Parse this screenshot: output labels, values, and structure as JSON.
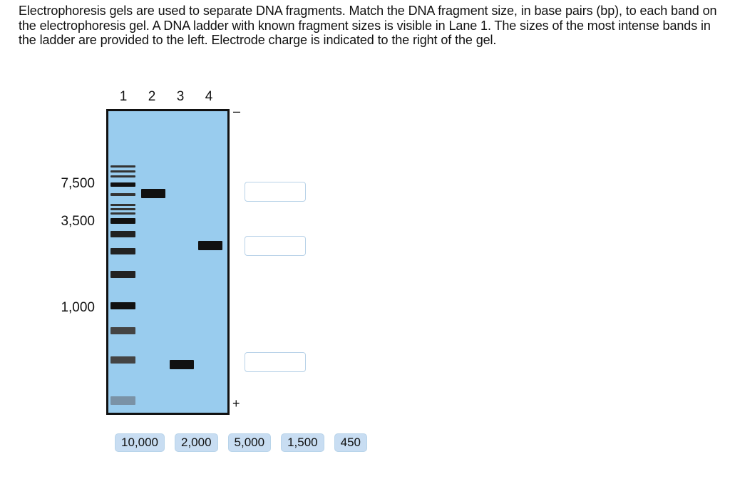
{
  "instructions": "Electrophoresis gels are used to separate DNA fragments. Match the DNA fragment size, in base pairs (bp), to each band on the electrophoresis gel. A DNA ladder with known fragment sizes is visible in Lane 1. The sizes of the most intense bands in the ladder are provided to the left. Electrode charge is indicated to the right of the gel.",
  "gel": {
    "lane_numbers": [
      "1",
      "2",
      "3",
      "4"
    ],
    "ladder_sizes": [
      "7,500",
      "3,500",
      "1,000"
    ],
    "electrodes": {
      "negative": "–",
      "positive": "+"
    },
    "colors": {
      "gel": "#99ccee",
      "border": "#111111",
      "band_dark": "#111111",
      "band_medium": "#333333",
      "band_light": "#555555",
      "band_faint": "#7a92a6"
    }
  },
  "answer_options": [
    "10,000",
    "2,000",
    "5,000",
    "1,500",
    "450"
  ]
}
